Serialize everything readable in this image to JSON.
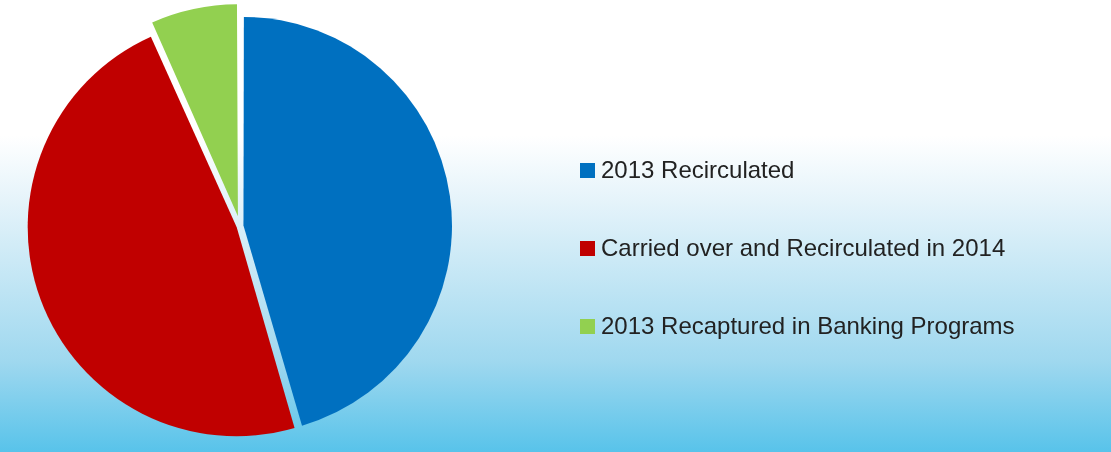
{
  "chart_data": {
    "type": "pie",
    "categories": [
      "2013 Recirculated",
      "Carried over and Recirculated in 2014",
      "2013 Recaptured in Banking Programs"
    ],
    "values": [
      45.5,
      47.8,
      6.7
    ],
    "colors": [
      "#0070c0",
      "#c00000",
      "#92d050"
    ],
    "legend": "right"
  }
}
